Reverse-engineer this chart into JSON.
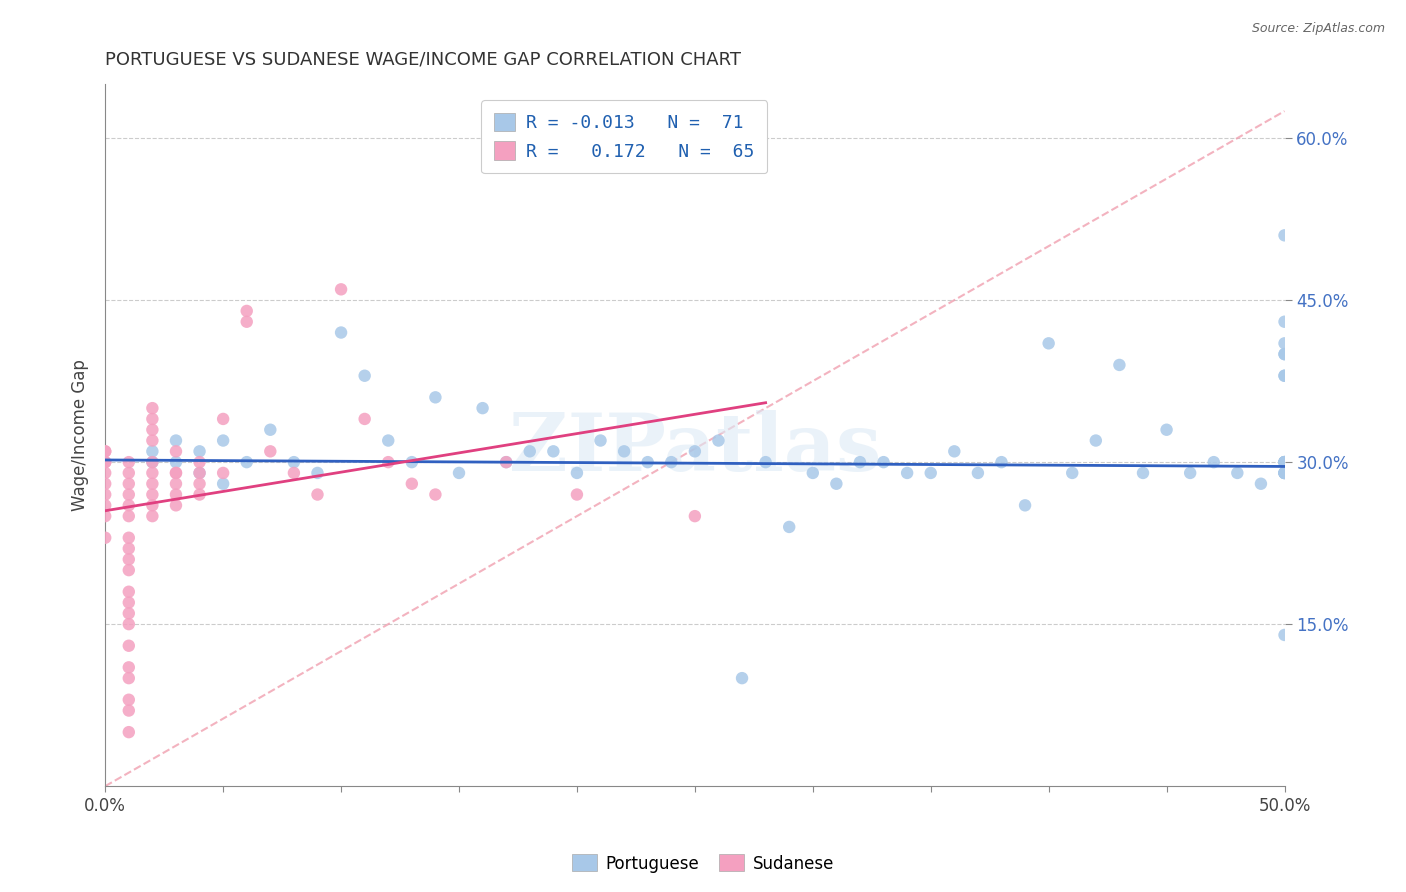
{
  "title": "PORTUGUESE VS SUDANESE WAGE/INCOME GAP CORRELATION CHART",
  "source_text": "Source: ZipAtlas.com",
  "ylabel": "Wage/Income Gap",
  "xlim": [
    0.0,
    0.5
  ],
  "ylim": [
    0.0,
    0.65
  ],
  "xticks": [
    0.0,
    0.05,
    0.1,
    0.15,
    0.2,
    0.25,
    0.3,
    0.35,
    0.4,
    0.45,
    0.5
  ],
  "xtick_labels": [
    "0.0%",
    "",
    "",
    "",
    "",
    "",
    "",
    "",
    "",
    "",
    "50.0%"
  ],
  "yticks": [
    0.15,
    0.3,
    0.45,
    0.6
  ],
  "ytick_labels": [
    "15.0%",
    "30.0%",
    "45.0%",
    "60.0%"
  ],
  "blue_color": "#a8c8e8",
  "pink_color": "#f4a0c0",
  "blue_line_color": "#3060c0",
  "pink_line_color": "#e04080",
  "diag_line_color": "#f0a0b0",
  "legend_blue_label": "Portuguese",
  "legend_pink_label": "Sudanese",
  "watermark": "ZIPatlas",
  "blue_scatter_x": [
    0.02,
    0.02,
    0.03,
    0.03,
    0.04,
    0.04,
    0.05,
    0.05,
    0.06,
    0.07,
    0.08,
    0.09,
    0.1,
    0.11,
    0.12,
    0.13,
    0.14,
    0.15,
    0.16,
    0.17,
    0.18,
    0.19,
    0.2,
    0.21,
    0.22,
    0.23,
    0.24,
    0.25,
    0.26,
    0.27,
    0.28,
    0.29,
    0.3,
    0.31,
    0.32,
    0.33,
    0.34,
    0.35,
    0.36,
    0.37,
    0.38,
    0.39,
    0.4,
    0.41,
    0.42,
    0.43,
    0.44,
    0.45,
    0.46,
    0.47,
    0.48,
    0.49,
    0.5,
    0.5,
    0.5,
    0.5,
    0.5,
    0.5,
    0.5,
    0.5,
    0.5,
    0.5,
    0.5,
    0.5,
    0.5,
    0.5,
    0.5,
    0.5,
    0.5,
    0.5,
    0.5
  ],
  "blue_scatter_y": [
    0.3,
    0.31,
    0.3,
    0.32,
    0.29,
    0.31,
    0.28,
    0.32,
    0.3,
    0.33,
    0.3,
    0.29,
    0.42,
    0.38,
    0.32,
    0.3,
    0.36,
    0.29,
    0.35,
    0.3,
    0.31,
    0.31,
    0.29,
    0.32,
    0.31,
    0.3,
    0.3,
    0.31,
    0.32,
    0.1,
    0.3,
    0.24,
    0.29,
    0.28,
    0.3,
    0.3,
    0.29,
    0.29,
    0.31,
    0.29,
    0.3,
    0.26,
    0.41,
    0.29,
    0.32,
    0.39,
    0.29,
    0.33,
    0.29,
    0.3,
    0.29,
    0.28,
    0.3,
    0.29,
    0.38,
    0.29,
    0.41,
    0.43,
    0.29,
    0.51,
    0.3,
    0.4,
    0.3,
    0.3,
    0.38,
    0.4,
    0.3,
    0.29,
    0.14,
    0.3,
    0.29
  ],
  "pink_scatter_x": [
    0.0,
    0.0,
    0.0,
    0.0,
    0.0,
    0.0,
    0.0,
    0.0,
    0.0,
    0.0,
    0.01,
    0.01,
    0.01,
    0.01,
    0.01,
    0.01,
    0.01,
    0.01,
    0.01,
    0.01,
    0.01,
    0.01,
    0.01,
    0.01,
    0.01,
    0.01,
    0.01,
    0.01,
    0.01,
    0.01,
    0.02,
    0.02,
    0.02,
    0.02,
    0.02,
    0.02,
    0.02,
    0.02,
    0.02,
    0.02,
    0.03,
    0.03,
    0.03,
    0.03,
    0.03,
    0.03,
    0.04,
    0.04,
    0.04,
    0.04,
    0.05,
    0.05,
    0.06,
    0.06,
    0.07,
    0.08,
    0.09,
    0.1,
    0.11,
    0.12,
    0.13,
    0.14,
    0.17,
    0.2,
    0.25
  ],
  "pink_scatter_y": [
    0.3,
    0.31,
    0.29,
    0.28,
    0.3,
    0.31,
    0.27,
    0.26,
    0.25,
    0.23,
    0.29,
    0.3,
    0.28,
    0.27,
    0.26,
    0.25,
    0.23,
    0.22,
    0.21,
    0.2,
    0.18,
    0.17,
    0.16,
    0.15,
    0.13,
    0.11,
    0.1,
    0.08,
    0.07,
    0.05,
    0.29,
    0.3,
    0.28,
    0.27,
    0.26,
    0.25,
    0.32,
    0.33,
    0.34,
    0.35,
    0.27,
    0.29,
    0.28,
    0.26,
    0.31,
    0.29,
    0.29,
    0.27,
    0.28,
    0.3,
    0.34,
    0.29,
    0.43,
    0.44,
    0.31,
    0.29,
    0.27,
    0.46,
    0.34,
    0.3,
    0.28,
    0.27,
    0.3,
    0.27,
    0.25
  ],
  "blue_line_x": [
    0.0,
    0.5
  ],
  "blue_line_y": [
    0.302,
    0.296
  ],
  "pink_line_x": [
    0.0,
    0.28
  ],
  "pink_line_y": [
    0.255,
    0.355
  ],
  "diag_line_x": [
    0.0,
    0.5
  ],
  "diag_line_y": [
    0.0,
    0.625
  ]
}
